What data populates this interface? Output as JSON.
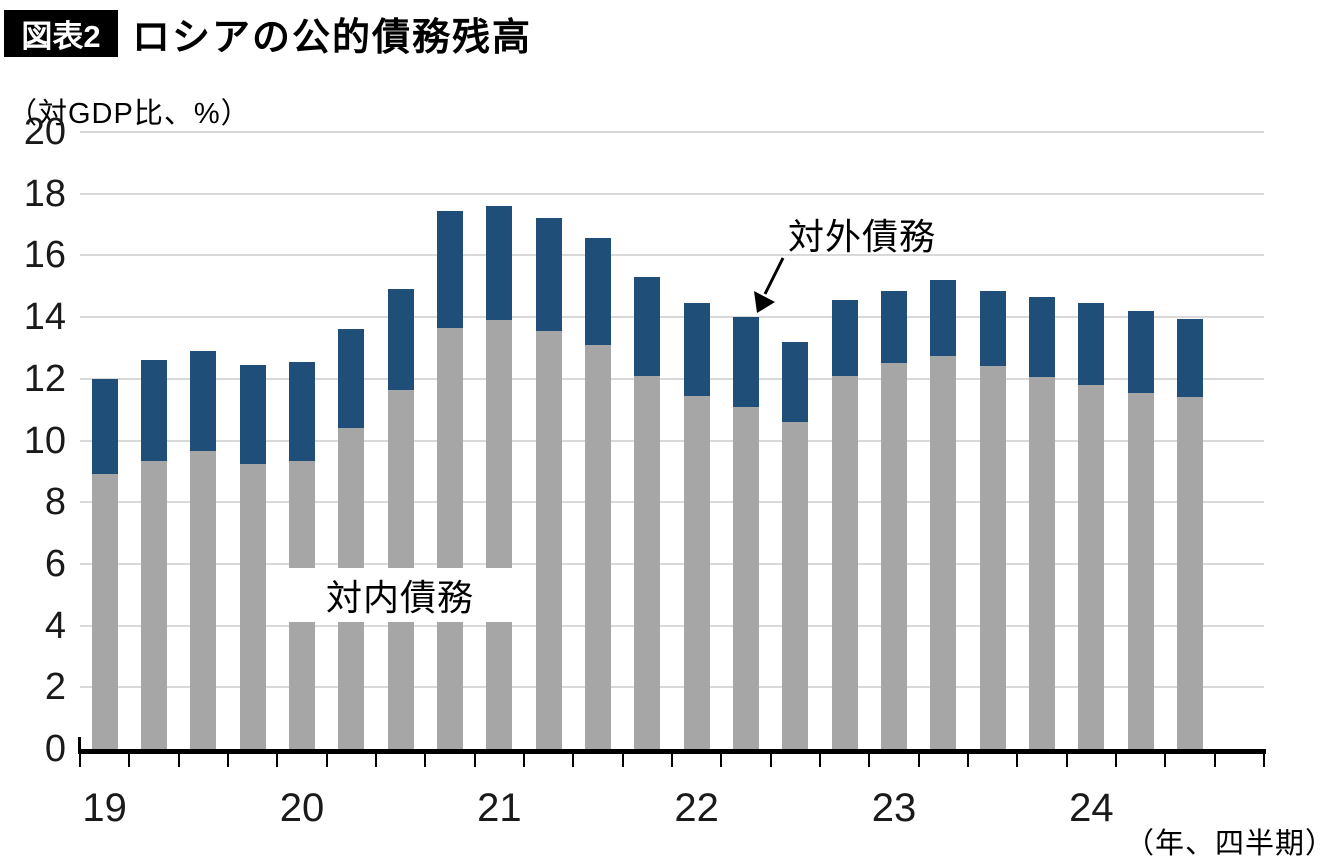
{
  "header": {
    "figure_label": "図表2",
    "title": "ロシアの公的債務残高"
  },
  "axis_unit_label": "（対GDP比、%）",
  "x_axis_note": "（年、四半期）",
  "annotations": {
    "internal_label": "対内債務",
    "external_label": "対外債務"
  },
  "colors": {
    "internal_bar": "#a6a6a6",
    "external_bar": "#1f4e79",
    "gridline": "#d9d9d9",
    "axis": "#000000",
    "badge_bg": "#000000",
    "badge_text": "#ffffff"
  },
  "chart_data": {
    "type": "bar",
    "stacked": true,
    "title": "ロシアの公的債務残高",
    "ylabel": "（対GDP比、%）",
    "xlabel": "（年、四半期）",
    "ylim": [
      0,
      20
    ],
    "ytick_interval": 2,
    "ytick_labels": [
      "0",
      "2",
      "4",
      "6",
      "8",
      "10",
      "12",
      "14",
      "16",
      "18",
      "20"
    ],
    "grid": true,
    "legend_position": "in-chart text annotations with arrow",
    "x_year_labels": [
      "19",
      "20",
      "21",
      "22",
      "23",
      "24"
    ],
    "year_first_bar_index": [
      0,
      4,
      8,
      12,
      16,
      20
    ],
    "quarter_slots": 24,
    "categories": [
      "2019Q1",
      "2019Q2",
      "2019Q3",
      "2019Q4",
      "2020Q1",
      "2020Q2",
      "2020Q3",
      "2020Q4",
      "2021Q1",
      "2021Q2",
      "2021Q3",
      "2021Q4",
      "2022Q1",
      "2022Q2",
      "2022Q3",
      "2022Q4",
      "2023Q1",
      "2023Q2",
      "2023Q3",
      "2023Q4",
      "2024Q1",
      "2024Q2",
      "2024Q3"
    ],
    "series": [
      {
        "name": "対内債務",
        "color": "#a6a6a6",
        "values": [
          8.9,
          9.35,
          9.65,
          9.25,
          9.35,
          10.4,
          11.65,
          13.65,
          13.9,
          13.55,
          13.1,
          12.1,
          11.45,
          11.1,
          10.6,
          12.1,
          12.5,
          12.75,
          12.4,
          12.05,
          11.8,
          11.55,
          11.4
        ]
      },
      {
        "name": "対外債務",
        "color": "#1f4e79",
        "values": [
          3.1,
          3.25,
          3.25,
          3.2,
          3.2,
          3.2,
          3.25,
          3.8,
          3.7,
          3.65,
          3.45,
          3.2,
          3.0,
          2.9,
          2.6,
          2.45,
          2.35,
          2.45,
          2.45,
          2.6,
          2.65,
          2.65,
          2.55
        ]
      }
    ],
    "totals": [
      12.0,
      12.6,
      12.9,
      12.45,
      12.55,
      13.6,
      14.9,
      17.45,
      17.6,
      17.2,
      16.55,
      15.3,
      14.45,
      14.0,
      13.2,
      14.55,
      14.85,
      15.2,
      14.85,
      14.65,
      14.45,
      14.2,
      13.95
    ]
  }
}
